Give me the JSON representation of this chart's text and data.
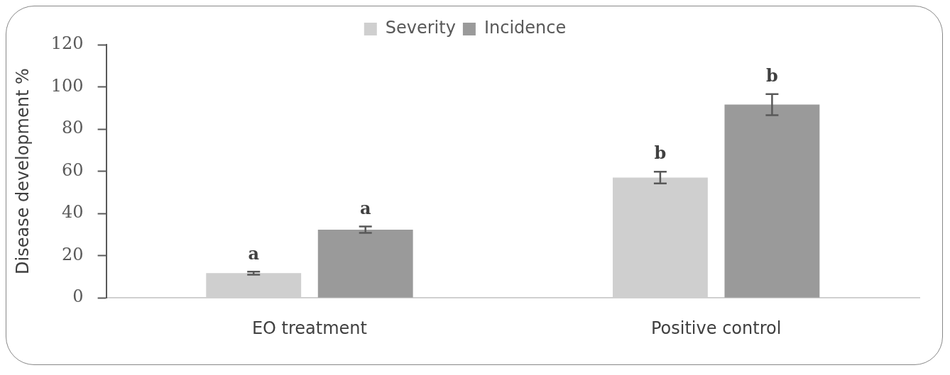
{
  "chart_data": {
    "type": "bar",
    "ylabel": "Disease development %",
    "categories": [
      "EO treatment",
      "Positive control"
    ],
    "series": [
      {
        "name": "Severity",
        "color": "#cfcfcf",
        "values": [
          11.7,
          57
        ],
        "errors": [
          0.7,
          2.8
        ],
        "value_labels": [
          "a",
          "b"
        ]
      },
      {
        "name": "Incidence",
        "color": "#9a9a9a",
        "values": [
          32.3,
          91.6
        ],
        "errors": [
          1.5,
          5
        ],
        "value_labels": [
          "a",
          "b"
        ]
      }
    ],
    "ylim": [
      0,
      120
    ],
    "yticks": [
      0,
      20,
      40,
      60,
      80,
      100,
      120
    ],
    "legend": "top",
    "grid": false
  }
}
